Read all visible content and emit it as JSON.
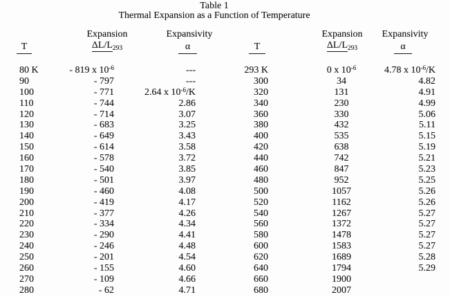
{
  "title": {
    "line1": "Table 1",
    "line2": "Thermal Expansion as a Function of Temperature"
  },
  "columns": {
    "t": "T",
    "expansion": "Expansion",
    "expansion_sub_main": "ΔL/L",
    "expansion_sub_sub": "293",
    "expansivity": "Expansivity",
    "alpha": "α"
  },
  "left_rows": [
    {
      "t": "80 K",
      "exp": "- 819 x 10",
      "exp_sup": "-6",
      "alpha": "---"
    },
    {
      "t": "90",
      "exp": "- 797",
      "alpha": "---"
    },
    {
      "t": "100",
      "exp": "- 771",
      "alpha": "2.64 x 10",
      "alpha_sup": "-6",
      "alpha_tail": "/K"
    },
    {
      "t": "110",
      "exp": "- 744",
      "alpha": "2.86"
    },
    {
      "t": "120",
      "exp": "- 714",
      "alpha": "3.07"
    },
    {
      "t": "130",
      "exp": "- 683",
      "alpha": "3.25"
    },
    {
      "t": "140",
      "exp": "- 649",
      "alpha": "3.43"
    },
    {
      "t": "150",
      "exp": "- 614",
      "alpha": "3.58"
    },
    {
      "t": "160",
      "exp": "- 578",
      "alpha": "3.72"
    },
    {
      "t": "170",
      "exp": "- 540",
      "alpha": "3.85"
    },
    {
      "t": "180",
      "exp": "- 501",
      "alpha": "3.97"
    },
    {
      "t": "190",
      "exp": "- 460",
      "alpha": "4.08"
    },
    {
      "t": "200",
      "exp": "- 419",
      "alpha": "4.17"
    },
    {
      "t": "210",
      "exp": "- 377",
      "alpha": "4.26"
    },
    {
      "t": "220",
      "exp": "- 334",
      "alpha": "4.34"
    },
    {
      "t": "230",
      "exp": "- 290",
      "alpha": "4.41"
    },
    {
      "t": "240",
      "exp": "- 246",
      "alpha": "4.48"
    },
    {
      "t": "250",
      "exp": "- 201",
      "alpha": "4.54"
    },
    {
      "t": "260",
      "exp": "- 155",
      "alpha": "4.60"
    },
    {
      "t": "270",
      "exp": "- 109",
      "alpha": "4.66"
    },
    {
      "t": "280",
      "exp": "- 62",
      "alpha": "4.71"
    }
  ],
  "right_rows": [
    {
      "t": "293 K",
      "exp": "0 x 10",
      "exp_sup": "-6",
      "alpha": "4.78 x 10",
      "alpha_sup": "-6",
      "alpha_tail": "/K"
    },
    {
      "t": "300",
      "exp": "34",
      "alpha": "4.82"
    },
    {
      "t": "320",
      "exp": "131",
      "alpha": "4.91"
    },
    {
      "t": "340",
      "exp": "230",
      "alpha": "4.99"
    },
    {
      "t": "360",
      "exp": "330",
      "alpha": "5.06"
    },
    {
      "t": "380",
      "exp": "432",
      "alpha": "5.11"
    },
    {
      "t": "400",
      "exp": "535",
      "alpha": "5.15"
    },
    {
      "t": "420",
      "exp": "638",
      "alpha": "5.19"
    },
    {
      "t": "440",
      "exp": "742",
      "alpha": "5.21"
    },
    {
      "t": "460",
      "exp": "847",
      "alpha": "5.23"
    },
    {
      "t": "480",
      "exp": "952",
      "alpha": "5.25"
    },
    {
      "t": "500",
      "exp": "1057",
      "alpha": "5.26"
    },
    {
      "t": "520",
      "exp": "1162",
      "alpha": "5.26"
    },
    {
      "t": "540",
      "exp": "1267",
      "alpha": "5.27"
    },
    {
      "t": "560",
      "exp": "1372",
      "alpha": "5.27"
    },
    {
      "t": "580",
      "exp": "1478",
      "alpha": "5.27"
    },
    {
      "t": "600",
      "exp": "1583",
      "alpha": "5.27"
    },
    {
      "t": "620",
      "exp": "1689",
      "alpha": "5.28"
    },
    {
      "t": "640",
      "exp": "1794",
      "alpha": "5.29"
    },
    {
      "t": "660",
      "exp": "1900",
      "alpha": ""
    },
    {
      "t": "680",
      "exp": "2007",
      "alpha": ""
    }
  ]
}
